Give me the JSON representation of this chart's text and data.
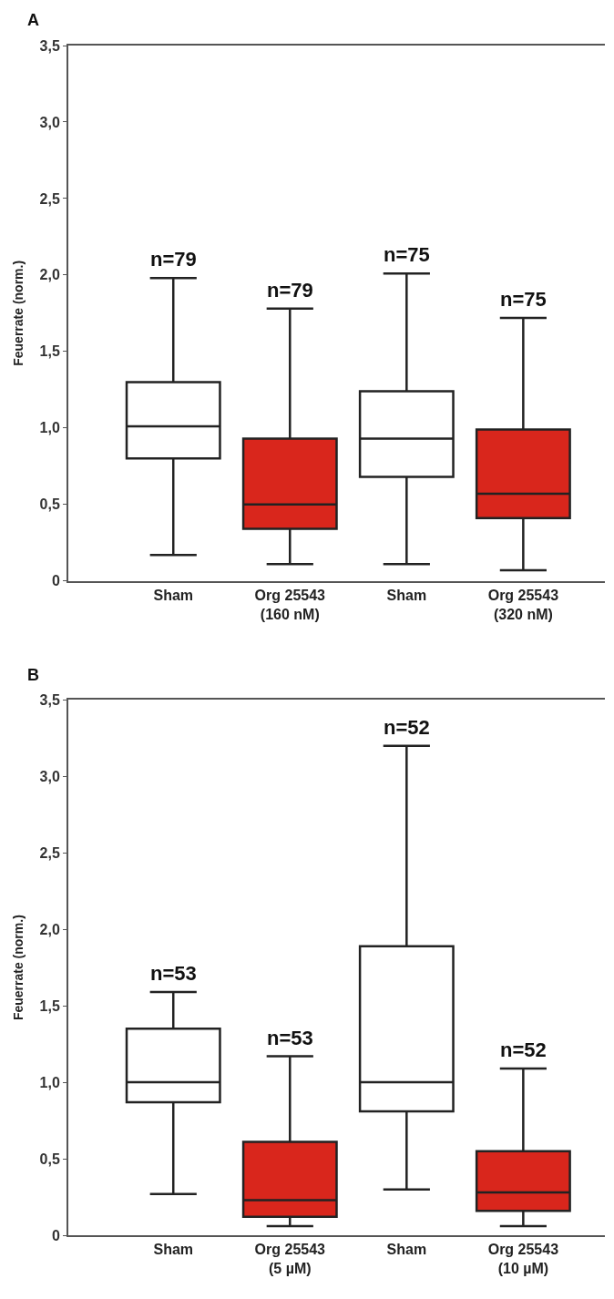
{
  "chart_data": [
    {
      "type": "box",
      "title": "A",
      "ylabel": "Feuerrate (norm.)",
      "categories": [
        "Sham",
        "Org 25543\n(160 nM)",
        "Sham",
        "Org 25543\n(320 nM)"
      ],
      "colors": [
        "#ffffff",
        "#d9261c",
        "#ffffff",
        "#d9261c"
      ],
      "boxes": [
        {
          "low": 0.17,
          "q1": 0.8,
          "median": 1.01,
          "q3": 1.3,
          "high": 1.98
        },
        {
          "low": 0.11,
          "q1": 0.34,
          "median": 0.5,
          "q3": 0.93,
          "high": 1.78
        },
        {
          "low": 0.11,
          "q1": 0.68,
          "median": 0.93,
          "q3": 1.24,
          "high": 2.01
        },
        {
          "low": 0.07,
          "q1": 0.41,
          "median": 0.57,
          "q3": 0.99,
          "high": 1.72
        }
      ],
      "annotations": [
        "n=79",
        "n=79",
        "n=75",
        "n=75"
      ],
      "ylim": [
        0,
        3.5
      ],
      "yticks": [
        0,
        {
          "value": 0.5,
          "label": "0,5"
        },
        {
          "value": 1.0,
          "label": "1,0"
        },
        {
          "value": 1.5,
          "label": "1,5"
        },
        {
          "value": 2.0,
          "label": "2,0"
        },
        {
          "value": 2.5,
          "label": "2,5"
        },
        {
          "value": 3.0,
          "label": "3,0"
        },
        {
          "value": 3.5,
          "label": "3,5"
        }
      ]
    },
    {
      "type": "box",
      "title": "B",
      "ylabel": "Feuerrate (norm.)",
      "categories": [
        "Sham",
        "Org 25543\n(5 µM)",
        "Sham",
        "Org 25543\n(10 µM)"
      ],
      "colors": [
        "#ffffff",
        "#d9261c",
        "#ffffff",
        "#d9261c"
      ],
      "boxes": [
        {
          "low": 0.27,
          "q1": 0.87,
          "median": 1.0,
          "q3": 1.35,
          "high": 1.59
        },
        {
          "low": 0.06,
          "q1": 0.12,
          "median": 0.23,
          "q3": 0.61,
          "high": 1.17
        },
        {
          "low": 0.3,
          "q1": 0.81,
          "median": 1.0,
          "q3": 1.89,
          "high": 3.2
        },
        {
          "low": 0.06,
          "q1": 0.16,
          "median": 0.28,
          "q3": 0.55,
          "high": 1.09
        }
      ],
      "annotations": [
        "n=53",
        "n=53",
        "n=52",
        "n=52"
      ],
      "ylim": [
        0,
        3.5
      ],
      "yticks": [
        0,
        {
          "value": 0.5,
          "label": "0,5"
        },
        {
          "value": 1.0,
          "label": "1,0"
        },
        {
          "value": 1.5,
          "label": "1,5"
        },
        {
          "value": 2.0,
          "label": "2,0"
        },
        {
          "value": 2.5,
          "label": "2,5"
        },
        {
          "value": 3.0,
          "label": "3,0"
        },
        {
          "value": 3.5,
          "label": "3,5"
        }
      ]
    }
  ]
}
